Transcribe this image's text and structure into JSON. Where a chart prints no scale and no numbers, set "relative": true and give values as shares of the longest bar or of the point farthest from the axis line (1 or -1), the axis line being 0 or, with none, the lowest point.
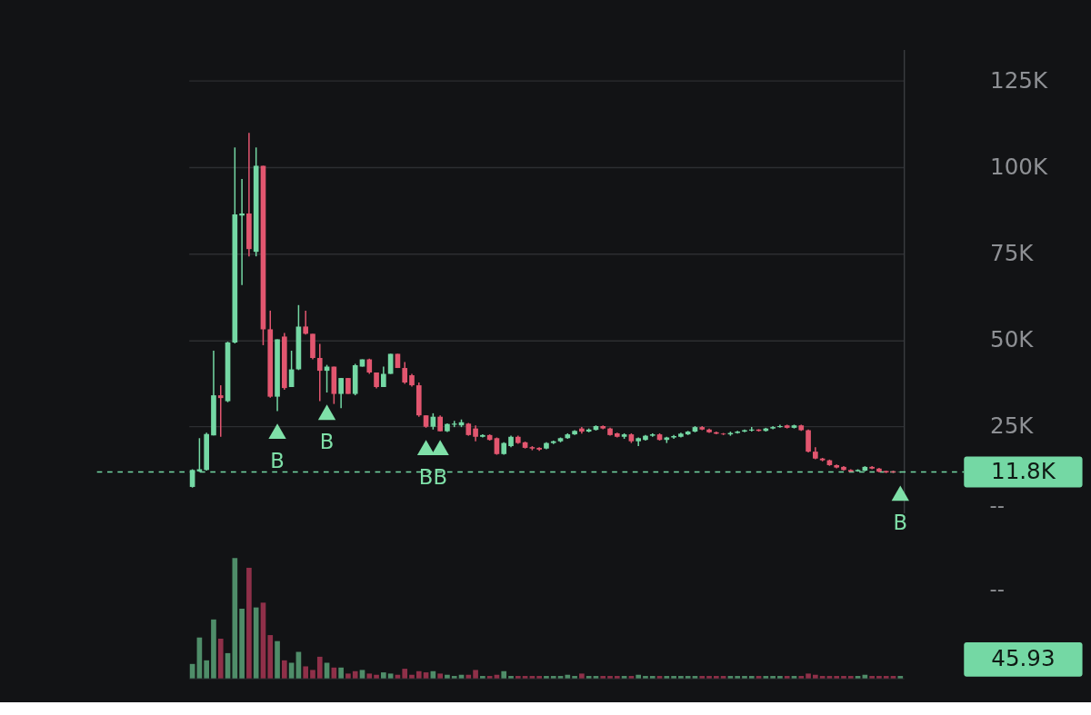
{
  "chart_data": [
    {
      "type": "candlestick",
      "categories": [
        null,
        null,
        null,
        null,
        null,
        null,
        null,
        null,
        null,
        null,
        null,
        null,
        null,
        null,
        null,
        null,
        null,
        null,
        null,
        null,
        null,
        null,
        null,
        null,
        null,
        null,
        null,
        null,
        null,
        null,
        null,
        null,
        null,
        null,
        null,
        null,
        null,
        null,
        null,
        null,
        null,
        null,
        null,
        null,
        null,
        null,
        null,
        null,
        null,
        null,
        null,
        null,
        null,
        null,
        null,
        null,
        null,
        null,
        null,
        null,
        null,
        null,
        null,
        null,
        null,
        null,
        null,
        null,
        null,
        null,
        null,
        null,
        null,
        null,
        null,
        null,
        null,
        null,
        null,
        null,
        null,
        null,
        null,
        null,
        null,
        null,
        null,
        null,
        null,
        null,
        null,
        null,
        null,
        null,
        null,
        null,
        null,
        null,
        null,
        null,
        null
      ],
      "ohlc": [
        [
          7.5,
          12.6,
          7.3,
          12.4
        ],
        [
          12.0,
          21.6,
          11.8,
          12.6
        ],
        [
          12.4,
          23.2,
          12.2,
          22.8
        ],
        [
          22.4,
          46.9,
          22.4,
          34.0
        ],
        [
          34.0,
          36.9,
          22.0,
          33.2
        ],
        [
          32.3,
          49.5,
          32.0,
          49.3
        ],
        [
          49.3,
          105.7,
          49.0,
          86.3
        ],
        [
          86.0,
          96.6,
          65.9,
          86.6
        ],
        [
          86.6,
          109.9,
          74.2,
          76.3
        ],
        [
          75.5,
          105.7,
          74.2,
          100.4
        ],
        [
          100.4,
          100.4,
          48.5,
          53.1
        ],
        [
          53.1,
          58.5,
          33.3,
          33.6
        ],
        [
          33.6,
          50.2,
          29.4,
          50.2
        ],
        [
          51.0,
          52.0,
          35.6,
          36.1
        ],
        [
          36.4,
          46.9,
          36.4,
          41.5
        ],
        [
          41.5,
          60.1,
          41.3,
          53.9
        ],
        [
          53.9,
          58.5,
          51.6,
          51.8
        ],
        [
          51.8,
          51.8,
          44.4,
          44.8
        ],
        [
          44.8,
          48.9,
          32.3,
          41.1
        ],
        [
          41.1,
          42.8,
          34.8,
          42.3
        ],
        [
          42.3,
          42.3,
          31.5,
          34.4
        ],
        [
          34.4,
          39.0,
          30.3,
          39.0
        ],
        [
          39.0,
          39.0,
          34.4,
          34.4
        ],
        [
          34.4,
          43.1,
          34.0,
          42.7
        ],
        [
          42.3,
          44.4,
          42.3,
          44.4
        ],
        [
          44.4,
          44.6,
          40.2,
          40.6
        ],
        [
          40.6,
          40.6,
          36.0,
          36.4
        ],
        [
          36.4,
          42.3,
          36.4,
          40.2
        ],
        [
          40.2,
          46.0,
          40.2,
          46.0
        ],
        [
          46.0,
          46.0,
          41.9,
          41.9
        ],
        [
          41.9,
          43.6,
          37.3,
          37.7
        ],
        [
          39.8,
          40.2,
          36.5,
          36.9
        ],
        [
          36.9,
          37.7,
          27.8,
          28.2
        ],
        [
          28.2,
          28.2,
          24.6,
          24.9
        ],
        [
          24.9,
          28.8,
          24.1,
          27.8
        ],
        [
          27.8,
          28.2,
          23.6,
          23.6
        ],
        [
          23.6,
          25.9,
          23.4,
          25.7
        ],
        [
          25.5,
          26.6,
          24.8,
          25.8
        ],
        [
          25.3,
          27.0,
          24.8,
          26.2
        ],
        [
          25.8,
          26.0,
          22.3,
          22.5
        ],
        [
          24.4,
          25.3,
          20.7,
          22.0
        ],
        [
          22.0,
          22.7,
          21.8,
          22.5
        ],
        [
          22.5,
          22.7,
          20.9,
          21.1
        ],
        [
          21.6,
          21.8,
          16.8,
          17.0
        ],
        [
          17.0,
          20.4,
          16.8,
          20.2
        ],
        [
          19.3,
          22.3,
          19.0,
          22.0
        ],
        [
          22.0,
          22.3,
          20.0,
          20.2
        ],
        [
          20.4,
          20.6,
          18.6,
          18.8
        ],
        [
          19.0,
          19.3,
          18.1,
          18.6
        ],
        [
          18.8,
          19.0,
          17.9,
          18.3
        ],
        [
          18.6,
          20.4,
          18.4,
          20.2
        ],
        [
          20.2,
          20.9,
          19.9,
          20.7
        ],
        [
          20.7,
          21.8,
          20.4,
          21.6
        ],
        [
          21.6,
          23.0,
          21.4,
          22.7
        ],
        [
          22.7,
          23.9,
          22.5,
          23.7
        ],
        [
          24.4,
          24.8,
          22.9,
          23.5
        ],
        [
          23.5,
          24.4,
          23.3,
          24.1
        ],
        [
          24.0,
          25.3,
          23.8,
          25.1
        ],
        [
          25.1,
          25.3,
          24.2,
          24.4
        ],
        [
          24.4,
          24.6,
          22.3,
          22.5
        ],
        [
          23.0,
          23.2,
          21.8,
          22.0
        ],
        [
          22.0,
          23.0,
          21.4,
          22.7
        ],
        [
          22.7,
          23.0,
          20.2,
          20.7
        ],
        [
          20.7,
          21.8,
          19.3,
          21.6
        ],
        [
          21.1,
          22.5,
          20.9,
          22.3
        ],
        [
          22.3,
          23.0,
          22.0,
          22.7
        ],
        [
          22.7,
          23.0,
          20.9,
          21.1
        ],
        [
          21.1,
          22.0,
          20.2,
          21.8
        ],
        [
          21.8,
          22.5,
          21.4,
          22.2
        ],
        [
          22.0,
          23.2,
          21.8,
          22.9
        ],
        [
          22.7,
          23.7,
          22.5,
          23.5
        ],
        [
          23.5,
          25.1,
          23.3,
          24.8
        ],
        [
          24.8,
          25.1,
          23.9,
          24.1
        ],
        [
          24.1,
          24.4,
          23.1,
          23.3
        ],
        [
          23.3,
          23.5,
          22.7,
          22.9
        ],
        [
          22.9,
          23.1,
          22.5,
          22.7
        ],
        [
          22.7,
          23.5,
          22.3,
          23.1
        ],
        [
          23.1,
          23.7,
          22.9,
          23.5
        ],
        [
          23.5,
          24.1,
          23.3,
          23.9
        ],
        [
          23.8,
          24.8,
          23.5,
          24.1
        ],
        [
          24.1,
          24.2,
          23.5,
          23.7
        ],
        [
          23.7,
          24.6,
          23.5,
          24.4
        ],
        [
          24.4,
          25.1,
          24.2,
          24.8
        ],
        [
          24.8,
          25.5,
          24.6,
          25.1
        ],
        [
          25.3,
          25.5,
          24.4,
          24.6
        ],
        [
          24.6,
          25.5,
          24.4,
          25.3
        ],
        [
          25.3,
          25.5,
          23.7,
          23.9
        ],
        [
          23.9,
          24.1,
          17.5,
          17.7
        ],
        [
          17.7,
          19.0,
          15.5,
          15.7
        ],
        [
          15.7,
          15.9,
          14.9,
          15.2
        ],
        [
          15.2,
          15.4,
          13.6,
          13.8
        ],
        [
          13.8,
          14.0,
          12.9,
          13.1
        ],
        [
          13.3,
          13.5,
          12.2,
          12.4
        ],
        [
          12.4,
          12.6,
          11.7,
          11.9
        ],
        [
          12.0,
          12.6,
          11.9,
          12.4
        ],
        [
          12.2,
          13.5,
          12.0,
          13.3
        ],
        [
          13.3,
          13.5,
          12.6,
          12.8
        ],
        [
          12.8,
          13.0,
          11.7,
          11.9
        ],
        [
          12.1,
          12.2,
          11.5,
          11.7
        ],
        [
          12.0,
          12.2,
          11.5,
          11.7
        ],
        [
          11.7,
          12.0,
          11.6,
          11.8
        ]
      ],
      "colors": [
        "#74d8a4",
        "#74d8a4",
        "#74d8a4",
        "#74d8a4",
        "#e2566f",
        "#74d8a4",
        "#74d8a4",
        "#74d8a4",
        "#e2566f",
        "#74d8a4",
        "#e2566f",
        "#e2566f",
        "#74d8a4",
        "#e2566f",
        "#74d8a4",
        "#74d8a4",
        "#e2566f",
        "#e2566f",
        "#e2566f",
        "#74d8a4",
        "#e2566f",
        "#74d8a4",
        "#e2566f",
        "#74d8a4",
        "#74d8a4",
        "#e2566f",
        "#e2566f",
        "#74d8a4",
        "#74d8a4",
        "#e2566f",
        "#e2566f",
        "#e2566f",
        "#e2566f",
        "#e2566f",
        "#74d8a4",
        "#e2566f",
        "#74d8a4",
        "#74d8a4",
        "#74d8a4",
        "#e2566f",
        "#e2566f",
        "#74d8a4",
        "#e2566f",
        "#e2566f",
        "#74d8a4",
        "#74d8a4",
        "#e2566f",
        "#e2566f",
        "#e2566f",
        "#e2566f",
        "#74d8a4",
        "#74d8a4",
        "#74d8a4",
        "#74d8a4",
        "#74d8a4",
        "#e2566f",
        "#74d8a4",
        "#74d8a4",
        "#e2566f",
        "#e2566f",
        "#e2566f",
        "#74d8a4",
        "#e2566f",
        "#74d8a4",
        "#74d8a4",
        "#74d8a4",
        "#e2566f",
        "#74d8a4",
        "#74d8a4",
        "#74d8a4",
        "#74d8a4",
        "#74d8a4",
        "#e2566f",
        "#e2566f",
        "#e2566f",
        "#e2566f",
        "#74d8a4",
        "#74d8a4",
        "#74d8a4",
        "#74d8a4",
        "#e2566f",
        "#74d8a4",
        "#74d8a4",
        "#74d8a4",
        "#e2566f",
        "#74d8a4",
        "#e2566f",
        "#e2566f",
        "#e2566f",
        "#e2566f",
        "#e2566f",
        "#e2566f",
        "#e2566f",
        "#e2566f",
        "#74d8a4",
        "#74d8a4",
        "#e2566f",
        "#e2566f",
        "#e2566f",
        "#e2566f",
        "#74d8a4"
      ],
      "series": [
        {
          "type": "scatter",
          "marker": "triangle",
          "color": "#7fe0a8",
          "values": [
            null,
            null,
            null,
            null,
            null,
            null,
            null,
            null,
            null,
            null,
            null,
            null,
            23.6,
            null,
            null,
            null,
            null,
            null,
            null,
            29.1,
            null,
            null,
            null,
            null,
            null,
            null,
            null,
            null,
            null,
            null,
            null,
            null,
            null,
            18.9,
            null,
            18.9,
            null,
            null,
            null,
            null,
            null,
            null,
            null,
            null,
            null,
            null,
            null,
            null,
            null,
            null,
            null,
            null,
            null,
            null,
            null,
            null,
            null,
            null,
            null,
            null,
            null,
            null,
            null,
            null,
            null,
            null,
            null,
            null,
            null,
            null,
            null,
            null,
            null,
            null,
            null,
            null,
            null,
            null,
            null,
            null,
            null,
            null,
            null,
            null,
            null,
            null,
            null,
            null,
            null,
            null,
            null,
            null,
            null,
            null,
            null,
            null,
            null,
            null,
            null,
            null,
            5.7
          ],
          "value_labels": [
            null,
            null,
            null,
            null,
            null,
            null,
            null,
            null,
            null,
            null,
            null,
            null,
            "B",
            null,
            null,
            null,
            null,
            null,
            null,
            "B",
            null,
            null,
            null,
            null,
            null,
            null,
            null,
            null,
            null,
            null,
            null,
            null,
            null,
            "B",
            null,
            "B",
            null,
            null,
            null,
            null,
            null,
            null,
            null,
            null,
            null,
            null,
            null,
            null,
            null,
            null,
            null,
            null,
            null,
            null,
            null,
            null,
            null,
            null,
            null,
            null,
            null,
            null,
            null,
            null,
            null,
            null,
            null,
            null,
            null,
            null,
            null,
            null,
            null,
            null,
            null,
            null,
            null,
            null,
            null,
            null,
            null,
            null,
            null,
            null,
            null,
            null,
            null,
            null,
            null,
            null,
            null,
            null,
            null,
            null,
            null,
            null,
            null,
            null,
            null,
            null,
            "B"
          ]
        }
      ],
      "ylim": [
        0,
        134
      ],
      "yticks": [
        {
          "value": 25,
          "label": "25K"
        },
        {
          "value": 50,
          "label": "50K"
        },
        {
          "value": 75,
          "label": "75K"
        },
        {
          "value": 100,
          "label": "100K"
        },
        {
          "value": 125,
          "label": "125K"
        }
      ],
      "grid": "y",
      "tick_labels": "y",
      "ref_lines": [
        {
          "axis": "y",
          "value": 11.8,
          "label": "11.8K",
          "color": "#74d8a4",
          "line_style": "dashed"
        }
      ],
      "annotations": [
        "--"
      ]
    },
    {
      "type": "bar",
      "relative": true,
      "categories": [
        null,
        null,
        null,
        null,
        null,
        null,
        null,
        null,
        null,
        null,
        null,
        null,
        null,
        null,
        null,
        null,
        null,
        null,
        null,
        null,
        null,
        null,
        null,
        null,
        null,
        null,
        null,
        null,
        null,
        null,
        null,
        null,
        null,
        null,
        null,
        null,
        null,
        null,
        null,
        null,
        null,
        null,
        null,
        null,
        null,
        null,
        null,
        null,
        null,
        null,
        null,
        null,
        null,
        null,
        null,
        null,
        null,
        null,
        null,
        null,
        null,
        null,
        null,
        null,
        null,
        null,
        null,
        null,
        null,
        null,
        null,
        null,
        null,
        null,
        null,
        null,
        null,
        null,
        null,
        null,
        null,
        null,
        null,
        null,
        null,
        null,
        null,
        null,
        null,
        null,
        null,
        null,
        null,
        null,
        null,
        null,
        null,
        null,
        null,
        null,
        null
      ],
      "values": [
        0.12,
        0.34,
        0.15,
        0.49,
        0.33,
        0.21,
        1,
        0.58,
        0.92,
        0.59,
        0.63,
        0.36,
        0.31,
        0.15,
        0.13,
        0.22,
        0.1,
        0.07,
        0.18,
        0.13,
        0.09,
        0.09,
        0.04,
        0.06,
        0.07,
        0.04,
        0.03,
        0.05,
        0.04,
        0.03,
        0.08,
        0.03,
        0.06,
        0.05,
        0.06,
        0.04,
        0.03,
        0.02,
        0.03,
        0.03,
        0.07,
        0.02,
        0.02,
        0.03,
        0.06,
        0.02,
        0.02,
        0.02,
        0.02,
        0.02,
        0.02,
        0.02,
        0.02,
        0.03,
        0.02,
        0.04,
        0.02,
        0.02,
        0.02,
        0.02,
        0.02,
        0.02,
        0.02,
        0.03,
        0.02,
        0.02,
        0.02,
        0.02,
        0.02,
        0.02,
        0.02,
        0.02,
        0.02,
        0.02,
        0.02,
        0.02,
        0.02,
        0.02,
        0.02,
        0.02,
        0.02,
        0.02,
        0.02,
        0.02,
        0.02,
        0.02,
        0.02,
        0.04,
        0.03,
        0.02,
        0.02,
        0.02,
        0.02,
        0.02,
        0.02,
        0.03,
        0.02,
        0.02,
        0.02,
        0.02,
        0.02
      ],
      "colors": [
        "#4f8d69",
        "#4f8d69",
        "#4f8d69",
        "#4f8d69",
        "#8f3049",
        "#4f8d69",
        "#4f8d69",
        "#4f8d69",
        "#8f3049",
        "#4f8d69",
        "#8f3049",
        "#8f3049",
        "#4f8d69",
        "#8f3049",
        "#4f8d69",
        "#4f8d69",
        "#8f3049",
        "#8f3049",
        "#8f3049",
        "#4f8d69",
        "#8f3049",
        "#4f8d69",
        "#8f3049",
        "#8f3049",
        "#4f8d69",
        "#8f3049",
        "#8f3049",
        "#4f8d69",
        "#4f8d69",
        "#8f3049",
        "#8f3049",
        "#8f3049",
        "#8f3049",
        "#8f3049",
        "#4f8d69",
        "#8f3049",
        "#4f8d69",
        "#4f8d69",
        "#4f8d69",
        "#8f3049",
        "#8f3049",
        "#4f8d69",
        "#8f3049",
        "#8f3049",
        "#4f8d69",
        "#4f8d69",
        "#8f3049",
        "#8f3049",
        "#8f3049",
        "#8f3049",
        "#4f8d69",
        "#4f8d69",
        "#4f8d69",
        "#4f8d69",
        "#4f8d69",
        "#8f3049",
        "#4f8d69",
        "#4f8d69",
        "#8f3049",
        "#8f3049",
        "#8f3049",
        "#4f8d69",
        "#8f3049",
        "#4f8d69",
        "#4f8d69",
        "#4f8d69",
        "#8f3049",
        "#4f8d69",
        "#4f8d69",
        "#4f8d69",
        "#4f8d69",
        "#4f8d69",
        "#8f3049",
        "#8f3049",
        "#8f3049",
        "#8f3049",
        "#4f8d69",
        "#4f8d69",
        "#4f8d69",
        "#4f8d69",
        "#8f3049",
        "#4f8d69",
        "#4f8d69",
        "#4f8d69",
        "#8f3049",
        "#4f8d69",
        "#8f3049",
        "#8f3049",
        "#8f3049",
        "#8f3049",
        "#8f3049",
        "#8f3049",
        "#8f3049",
        "#8f3049",
        "#4f8d69",
        "#4f8d69",
        "#8f3049",
        "#8f3049",
        "#8f3049",
        "#8f3049",
        "#4f8d69"
      ],
      "annotations": [
        "--",
        "45.93"
      ]
    }
  ]
}
